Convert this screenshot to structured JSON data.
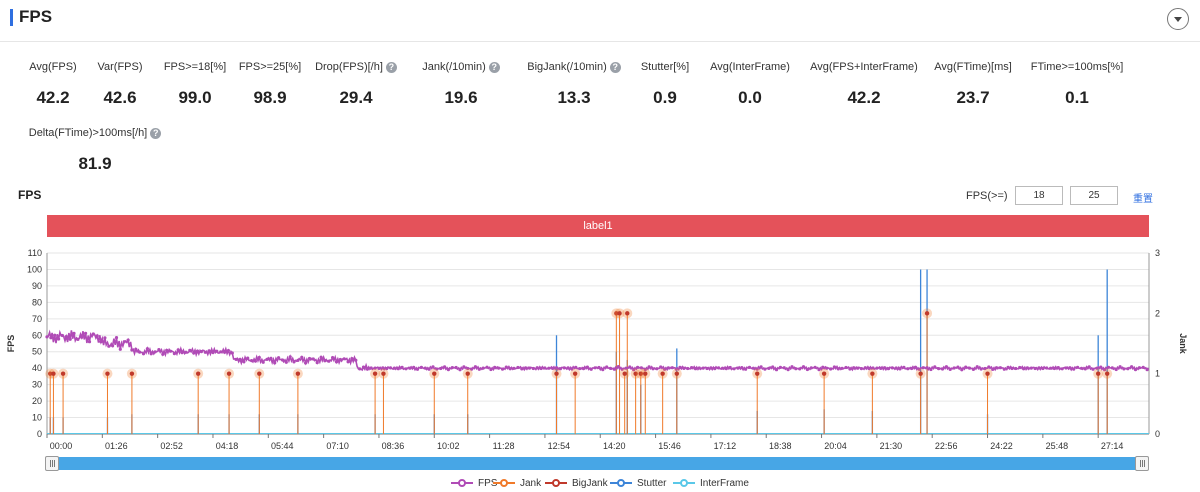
{
  "header": {
    "title": "FPS"
  },
  "metrics": [
    {
      "label": "Avg(FPS)",
      "value": "42.2",
      "help": false
    },
    {
      "label": "Var(FPS)",
      "value": "42.6",
      "help": false
    },
    {
      "label": "FPS>=18[%]",
      "value": "99.0",
      "help": false
    },
    {
      "label": "FPS>=25[%]",
      "value": "98.9",
      "help": false
    },
    {
      "label": "Drop(FPS)[/h]",
      "value": "29.4",
      "help": true
    },
    {
      "label": "Jank(/10min)",
      "value": "19.6",
      "help": true
    },
    {
      "label": "BigJank(/10min)",
      "value": "13.3",
      "help": true
    },
    {
      "label": "Stutter[%]",
      "value": "0.9",
      "help": false
    },
    {
      "label": "Avg(InterFrame)",
      "value": "0.0",
      "help": false
    },
    {
      "label": "Avg(FPS+InterFrame)",
      "value": "42.2",
      "help": false
    },
    {
      "label": "Avg(FTime)[ms]",
      "value": "23.7",
      "help": false
    },
    {
      "label": "FTime>=100ms[%]",
      "value": "0.1",
      "help": false
    },
    {
      "label": "Delta(FTime)>100ms[/h]",
      "value": "81.9",
      "help": true
    }
  ],
  "chart_section": {
    "title": "FPS",
    "threshold_label": "FPS(>=)",
    "threshold_low": "18",
    "threshold_high": "25",
    "reset_label": "重置",
    "band_label": "label1"
  },
  "colors": {
    "fps": "#b04bb6",
    "jank": "#f07a2a",
    "bigjank": "#c0392b",
    "stutter": "#3d85d8",
    "interframe": "#5ac8e8",
    "band": "#e4525a",
    "accent": "#2f6fe0"
  },
  "chart_data": {
    "type": "line",
    "title": "",
    "xlabel": "",
    "ylabel": "FPS",
    "y2label": "Jank",
    "ylim": [
      0,
      110
    ],
    "y2lim": [
      0,
      3
    ],
    "y_ticks": [
      0,
      10,
      20,
      30,
      40,
      50,
      60,
      70,
      80,
      90,
      100,
      110
    ],
    "y2_ticks": [
      0,
      1,
      2,
      3
    ],
    "x_ticks": [
      "00:00",
      "01:26",
      "02:52",
      "04:18",
      "05:44",
      "07:10",
      "08:36",
      "10:02",
      "11:28",
      "12:54",
      "14:20",
      "15:46",
      "17:12",
      "18:38",
      "20:04",
      "21:30",
      "22:56",
      "24:22",
      "25:48",
      "27:14"
    ],
    "x_range_minutes": [
      0,
      1713
    ],
    "grid": true,
    "legend_position": "bottom",
    "legend": [
      "FPS",
      "Jank",
      "BigJank",
      "Stutter",
      "InterFrame"
    ],
    "fps_segments": [
      {
        "from": "00:00",
        "to": "01:25",
        "fps": 59
      },
      {
        "from": "01:25",
        "to": "02:12",
        "fps": 55
      },
      {
        "from": "02:12",
        "to": "04:48",
        "fps": 50
      },
      {
        "from": "04:48",
        "to": "08:00",
        "fps": 45
      },
      {
        "from": "08:00",
        "to": "28:33",
        "fps": 40
      }
    ],
    "jank_events": [
      {
        "t": "00:05",
        "jank": 1
      },
      {
        "t": "00:10",
        "jank": 1
      },
      {
        "t": "00:25",
        "jank": 1
      },
      {
        "t": "01:34",
        "jank": 1
      },
      {
        "t": "02:12",
        "jank": 1
      },
      {
        "t": "03:55",
        "jank": 1
      },
      {
        "t": "04:43",
        "jank": 1
      },
      {
        "t": "05:30",
        "jank": 1
      },
      {
        "t": "06:30",
        "jank": 1
      },
      {
        "t": "08:30",
        "jank": 1
      },
      {
        "t": "08:43",
        "jank": 1
      },
      {
        "t": "10:02",
        "jank": 1
      },
      {
        "t": "10:54",
        "jank": 1
      },
      {
        "t": "13:12",
        "jank": 1
      },
      {
        "t": "13:41",
        "jank": 1
      },
      {
        "t": "14:45",
        "jank": 2
      },
      {
        "t": "14:50",
        "jank": 2
      },
      {
        "t": "14:58",
        "jank": 1
      },
      {
        "t": "15:02",
        "jank": 2
      },
      {
        "t": "15:15",
        "jank": 1
      },
      {
        "t": "15:23",
        "jank": 1
      },
      {
        "t": "15:30",
        "jank": 1
      },
      {
        "t": "15:57",
        "jank": 1
      },
      {
        "t": "16:19",
        "jank": 1
      },
      {
        "t": "18:24",
        "jank": 1
      },
      {
        "t": "20:08",
        "jank": 1
      },
      {
        "t": "21:23",
        "jank": 1
      },
      {
        "t": "22:38",
        "jank": 1
      },
      {
        "t": "22:48",
        "jank": 2
      },
      {
        "t": "24:22",
        "jank": 1
      },
      {
        "t": "27:14",
        "jank": 1
      },
      {
        "t": "27:28",
        "jank": 1
      }
    ],
    "stutter_spikes": [
      {
        "t": "00:05",
        "fps": 10
      },
      {
        "t": "00:10",
        "fps": 10
      },
      {
        "t": "00:25",
        "fps": 10
      },
      {
        "t": "01:34",
        "fps": 10
      },
      {
        "t": "02:12",
        "fps": 12
      },
      {
        "t": "03:55",
        "fps": 12
      },
      {
        "t": "04:43",
        "fps": 12
      },
      {
        "t": "05:30",
        "fps": 12
      },
      {
        "t": "06:30",
        "fps": 12
      },
      {
        "t": "08:30",
        "fps": 12
      },
      {
        "t": "10:02",
        "fps": 12
      },
      {
        "t": "10:54",
        "fps": 12
      },
      {
        "t": "13:12",
        "fps": 60
      },
      {
        "t": "14:45",
        "fps": 50
      },
      {
        "t": "15:02",
        "fps": 45
      },
      {
        "t": "15:23",
        "fps": 30
      },
      {
        "t": "16:19",
        "fps": 52
      },
      {
        "t": "18:24",
        "fps": 14
      },
      {
        "t": "20:08",
        "fps": 15
      },
      {
        "t": "21:23",
        "fps": 14
      },
      {
        "t": "22:38",
        "fps": 100
      },
      {
        "t": "22:48",
        "fps": 100
      },
      {
        "t": "24:22",
        "fps": 12
      },
      {
        "t": "27:14",
        "fps": 60
      },
      {
        "t": "27:28",
        "fps": 100
      }
    ]
  }
}
